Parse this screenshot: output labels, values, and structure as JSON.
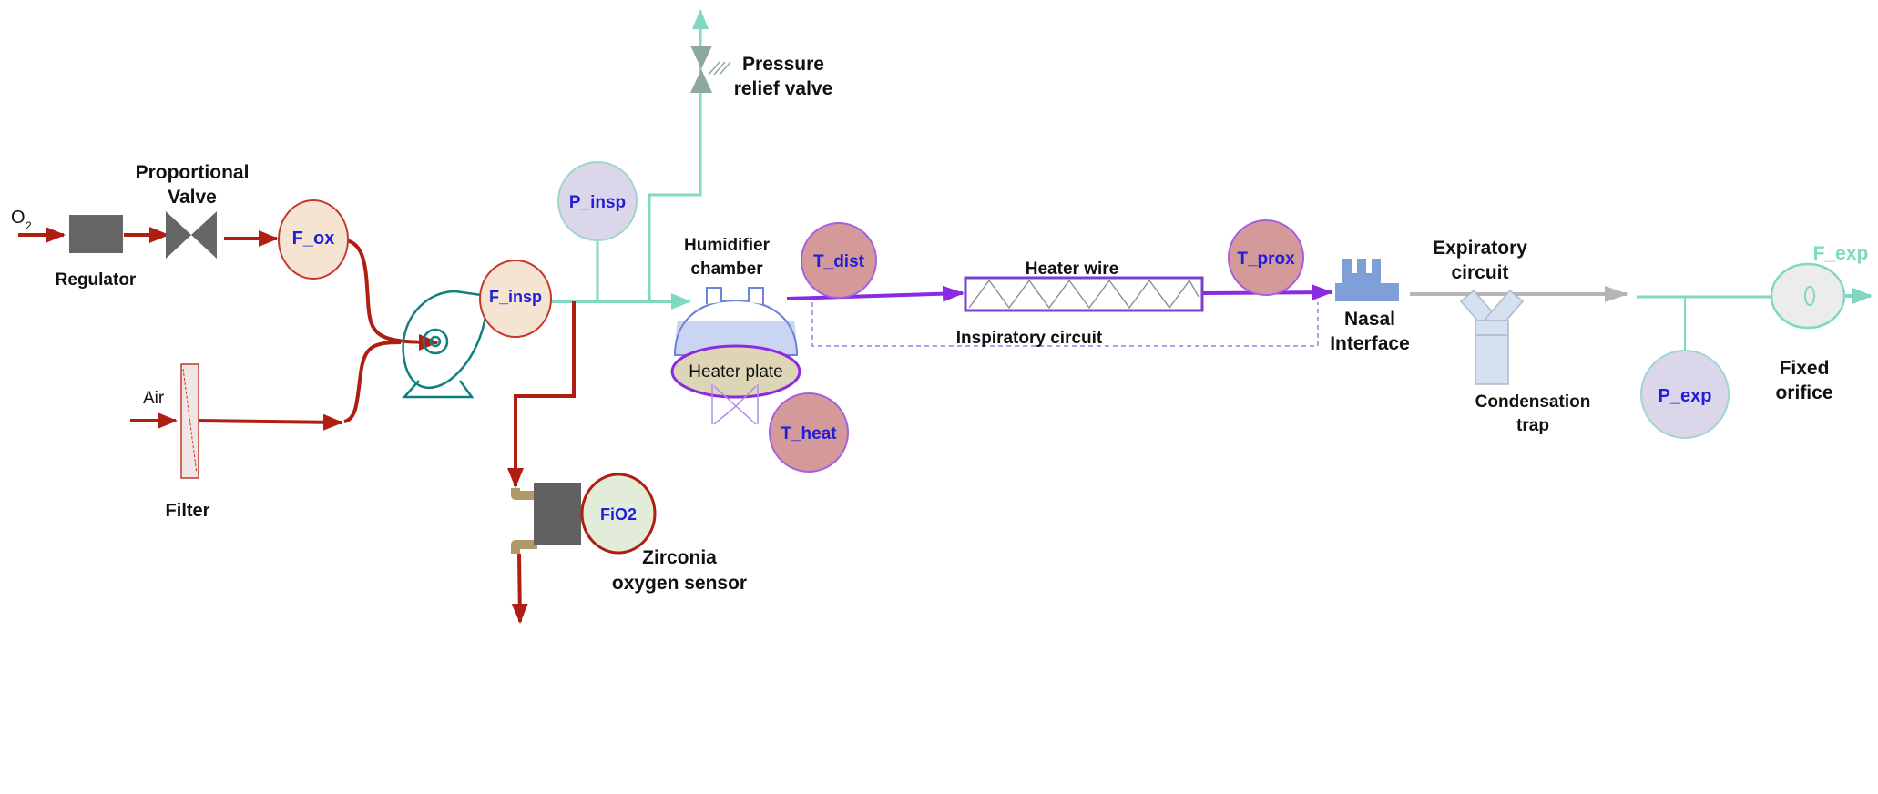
{
  "labels": {
    "o2": "O",
    "o2_sub": "2",
    "regulator": "Regulator",
    "proportional_valve_1": "Proportional",
    "proportional_valve_2": "Valve",
    "air": "Air",
    "filter": "Filter",
    "pressure_relief_1": "Pressure",
    "pressure_relief_2": "relief valve",
    "humidifier_1": "Humidifier",
    "humidifier_2": "chamber",
    "heater_plate": "Heater plate",
    "heater_wire": "Heater wire",
    "inspiratory_circuit": "Inspiratory circuit",
    "nasal_1": "Nasal",
    "nasal_2": "Interface",
    "expiratory_1": "Expiratory",
    "expiratory_2": "circuit",
    "condensation_1": "Condensation",
    "condensation_2": "trap",
    "fixed_orifice_1": "Fixed",
    "fixed_orifice_2": "orifice",
    "zirconia_1": "Zirconia",
    "zirconia_2": "oxygen sensor"
  },
  "sensors": {
    "f_ox": "F_ox",
    "f_insp": "F_insp",
    "p_insp": "P_insp",
    "t_dist": "T_dist",
    "t_prox": "T_prox",
    "t_heat": "T_heat",
    "fio2": "FiO2",
    "p_exp": "P_exp",
    "f_exp": "F_exp"
  },
  "colors": {
    "oxygen_line": "#b01e12",
    "air_path": "#7fd8c0",
    "heated_line": "#8a2be2",
    "expiratory_line": "#b5b5b5",
    "sensor_text": "#1f1fd8",
    "flow_sensor_fill": "#f6e4d2",
    "pressure_sensor_fill": "#dcd6ea",
    "temp_sensor_fill": "#d49a9a",
    "fio2_sensor_fill": "#e2ecd8",
    "blower": "#107f80",
    "nasal_interface": "#7f9fd8"
  }
}
